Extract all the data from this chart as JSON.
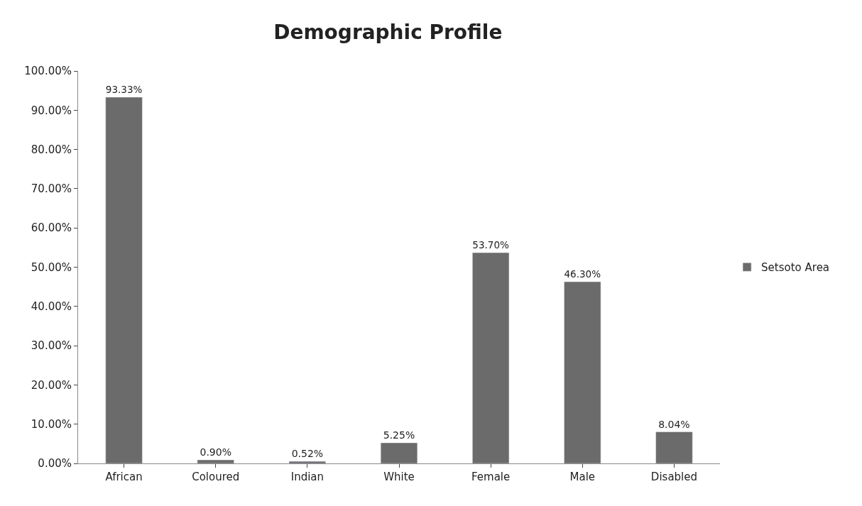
{
  "chart_data": {
    "type": "bar",
    "title": "Demographic Profile",
    "categories": [
      "African",
      "Coloured",
      "Indian",
      "White",
      "Female",
      "Male",
      "Disabled"
    ],
    "series": [
      {
        "name": "Setsoto Area",
        "color": "#6b6b6b",
        "values": [
          93.33,
          0.9,
          0.52,
          5.25,
          53.7,
          46.3,
          8.04
        ],
        "value_labels": [
          "93.33%",
          "0.90%",
          "0.52%",
          "5.25%",
          "53.70%",
          "46.30%",
          "8.04%"
        ]
      }
    ],
    "ylim": [
      0,
      100
    ],
    "yticks": [
      {
        "value": 0,
        "label": "0.00%"
      },
      {
        "value": 10,
        "label": "10.00%"
      },
      {
        "value": 20,
        "label": "20.00%"
      },
      {
        "value": 30,
        "label": "30.00%"
      },
      {
        "value": 40,
        "label": "40.00%"
      },
      {
        "value": 50,
        "label": "50.00%"
      },
      {
        "value": 60,
        "label": "60.00%"
      },
      {
        "value": 70,
        "label": "70.00%"
      },
      {
        "value": 80,
        "label": "80.00%"
      },
      {
        "value": 90,
        "label": "90.00%"
      },
      {
        "value": 100,
        "label": "100.00%"
      }
    ],
    "grid": false,
    "legend": "right"
  }
}
